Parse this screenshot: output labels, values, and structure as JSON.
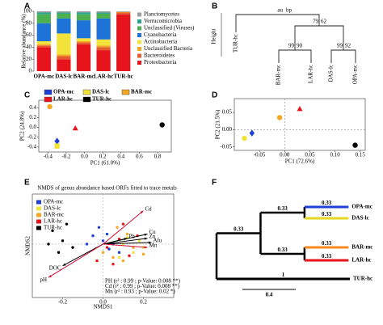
{
  "chart_data": [
    {
      "type": "stacked_bar",
      "label": "A",
      "ylabel": "Relative abundance (%)",
      "categories": [
        "OPA-mc",
        "DAS-lc",
        "BAR-mc",
        "LAR-hc",
        "TUR-hc"
      ],
      "series": [
        {
          "name": "Planctomycetes",
          "color": "#9e9e9e",
          "values": [
            2,
            2,
            2,
            2,
            1
          ]
        },
        {
          "name": "Verrucomicrobia",
          "color": "#2ca58d",
          "values": [
            3,
            2,
            3,
            2,
            0
          ]
        },
        {
          "name": "Unclassified (Viruses)",
          "color": "#4caf50",
          "values": [
            15,
            8,
            10,
            8,
            0
          ]
        },
        {
          "name": "Cyanobacteria",
          "color": "#1e73d8",
          "values": [
            30,
            25,
            30,
            35,
            0
          ]
        },
        {
          "name": "Actinobacteria",
          "color": "#f2e33a",
          "values": [
            5,
            35,
            5,
            10,
            0
          ]
        },
        {
          "name": "Unclassified Bacteria",
          "color": "#f5a623",
          "values": [
            2,
            3,
            2,
            3,
            1
          ]
        },
        {
          "name": "Bacteroidetes",
          "color": "#e35d2f",
          "values": [
            3,
            5,
            3,
            5,
            3
          ]
        },
        {
          "name": "Proteobacteria",
          "color": "#e8141b",
          "values": [
            40,
            20,
            45,
            35,
            95
          ]
        }
      ],
      "ylim": [
        0,
        100
      ],
      "yticks": [
        0,
        20,
        40,
        60,
        80,
        100
      ]
    },
    {
      "type": "pvclust",
      "label": "B",
      "ylabel": "Height",
      "edge_labels": [
        "au",
        "bp"
      ],
      "leaves": [
        "TUR-hc",
        "BAR-mc",
        "LAR-hc",
        "DAS-lc",
        "OPA-mc"
      ],
      "nodes": [
        {
          "au": 79,
          "bp": 62
        },
        {
          "au": 99,
          "bp": 90
        },
        {
          "au": 99,
          "bp": 92
        }
      ],
      "au_color": "#e8141b",
      "bp_color": "#2ca02c"
    },
    {
      "type": "scatter",
      "label": "C",
      "xlabel": "PC1 (61.0%)",
      "ylabel": "PC2 (24.8%)",
      "series": [
        {
          "name": "OPA-mc",
          "color": "#1e3fd8",
          "marker": "diamond",
          "x": [
            -0.3
          ],
          "y": [
            -0.28
          ]
        },
        {
          "name": "DAS-lc",
          "color": "#f2e33a",
          "marker": "square",
          "x": [
            -0.3
          ],
          "y": [
            -0.38
          ]
        },
        {
          "name": "BAR-mc",
          "color": "#f5a623",
          "marker": "circle",
          "x": [
            -0.38
          ],
          "y": [
            0.42
          ]
        },
        {
          "name": "LAR-hc",
          "color": "#e8141b",
          "marker": "triangle",
          "x": [
            -0.1
          ],
          "y": [
            -0.02
          ]
        },
        {
          "name": "TUR-hc",
          "color": "#000000",
          "marker": "circle",
          "x": [
            0.85
          ],
          "y": [
            0.05
          ]
        }
      ],
      "xlim": [
        -0.5,
        0.95
      ],
      "xticks": [
        -0.4,
        -0.2,
        {
          "value": 0,
          "label": "0.0"
        },
        0.2,
        0.4,
        0.6,
        0.8
      ],
      "ylim": [
        -0.5,
        0.55
      ],
      "yticks": [
        -0.4,
        -0.2,
        {
          "value": 0,
          "label": "0.0"
        },
        0.2,
        0.4
      ],
      "legend": "top",
      "zero_lines": false
    },
    {
      "type": "scatter",
      "label": "D",
      "xlabel": "PC1 (72.6%)",
      "ylabel": "PC2 (21.5%)",
      "series": [
        {
          "name": "OPA-mc",
          "color": "#1e3fd8",
          "marker": "diamond",
          "x": [
            -0.065
          ],
          "y": [
            -0.01
          ]
        },
        {
          "name": "DAS-lc",
          "color": "#f2e33a",
          "marker": "circle",
          "x": [
            -0.08
          ],
          "y": [
            -0.025
          ]
        },
        {
          "name": "BAR-mc",
          "color": "#f5a623",
          "marker": "circle",
          "x": [
            -0.01
          ],
          "y": [
            0.035
          ]
        },
        {
          "name": "LAR-hc",
          "color": "#e8141b",
          "marker": "triangle",
          "x": [
            0.03
          ],
          "y": [
            0.06
          ]
        },
        {
          "name": "TUR-hc",
          "color": "#000000",
          "marker": "circle",
          "x": [
            0.14
          ],
          "y": [
            -0.045
          ]
        }
      ],
      "xlim": [
        -0.1,
        0.16
      ],
      "xticks": [
        {
          "value": -0.05,
          "label": "-0.05"
        },
        {
          "value": 0,
          "label": "0.00"
        },
        {
          "value": 0.05,
          "label": "0.05"
        },
        {
          "value": 0.1,
          "label": "0.10"
        },
        {
          "value": 0.15,
          "label": "0.15"
        }
      ],
      "ylim": [
        -0.06,
        0.09
      ],
      "yticks": [
        {
          "value": -0.05,
          "label": "-0.05"
        },
        {
          "value": 0,
          "label": "0.00"
        },
        {
          "value": 0.05,
          "label": "0.05"
        }
      ],
      "zero_lines": true
    },
    {
      "type": "nmds",
      "label": "E",
      "title": "NMDS of genus abundance based ORFs fitted to trace metals",
      "xlabel": "NMDS1",
      "ylabel": "NMDS2",
      "series": [
        {
          "name": "OPA-mc",
          "color": "#1e3fd8",
          "x": [
            -0.05,
            0.0,
            0.03,
            -0.02,
            0.05,
            0.08,
            -0.08,
            0.02
          ],
          "y": [
            0.05,
            0.02,
            -0.03,
            0.1,
            0.0,
            -0.05,
            0.0,
            0.06
          ]
        },
        {
          "name": "DAS-lc",
          "color": "#f2e33a",
          "x": [
            0.1,
            0.15,
            0.12,
            0.18,
            0.08,
            0.2
          ],
          "y": [
            0.0,
            -0.05,
            0.04,
            0.02,
            -0.08,
            -0.02
          ]
        },
        {
          "name": "BAR-mc",
          "color": "#f5a623",
          "x": [
            0.05,
            0.1,
            0.15,
            0.0,
            0.12,
            0.2,
            0.07
          ],
          "y": [
            -0.08,
            -0.1,
            -0.02,
            -0.05,
            0.06,
            -0.06,
            0.1
          ]
        },
        {
          "name": "LAR-hc",
          "color": "#e8141b",
          "x": [
            0.02,
            0.08,
            0.13,
            0.17,
            -0.03,
            0.1,
            0.05
          ],
          "y": [
            -0.02,
            0.03,
            -0.07,
            0.05,
            -0.1,
            0.12,
            -0.12
          ]
        },
        {
          "name": "TUR-hc",
          "color": "#000000",
          "x": [
            -0.25,
            -0.2,
            -0.22,
            -0.18,
            -0.27,
            -0.15
          ],
          "y": [
            0.08,
            0.02,
            -0.05,
            0.12,
            0.0,
            -0.02
          ]
        }
      ],
      "vectors": [
        {
          "name": "Cd",
          "color": "#d0103a",
          "x": 0.2,
          "y": 0.2
        },
        {
          "name": "Pb",
          "color": "#000000",
          "x": 0.12,
          "y": 0.035
        },
        {
          "name": "Cu",
          "color": "#000000",
          "x": 0.22,
          "y": 0.06
        },
        {
          "name": "Zn",
          "color": "#000000",
          "x": 0.22,
          "y": 0.035
        },
        {
          "name": "Afu",
          "color": "#000000",
          "x": 0.24,
          "y": 0.01
        },
        {
          "name": "Mn",
          "color": "#d0103a",
          "x": 0.22,
          "y": -0.02
        },
        {
          "name": "DOC",
          "color": "#000000",
          "x": -0.2,
          "y": -0.13
        },
        {
          "name": "pH",
          "color": "#d0103a",
          "x": -0.27,
          "y": -0.2
        }
      ],
      "annotations": [
        "PH (r² : 0.99 ; p-Value: 0.008 **)",
        "Cd (r² : 0.99 ; p-Value: 0.008 **)",
        "Mn (r² : 0.93 ; p-Value: 0.02 *)"
      ],
      "annotation_color": "#d0103a",
      "xlim": [
        -0.35,
        0.35
      ],
      "xticks": [
        -0.2,
        {
          "value": 0,
          "label": "0.0"
        },
        0.2
      ],
      "ylim": [
        -0.32,
        0.3
      ],
      "zero_lines": true
    },
    {
      "type": "tree",
      "label": "F",
      "leaves": [
        {
          "name": "OPA-mc",
          "color": "#1e3fd8",
          "length": 0.33
        },
        {
          "name": "DAS-lc",
          "color": "#e6d820",
          "length": 0.33
        },
        {
          "name": "BAR-mc",
          "color": "#f58a1f",
          "length": 0.33
        },
        {
          "name": "LAR-hc",
          "color": "#e8141b",
          "length": 0.33
        },
        {
          "name": "TUR-hc",
          "color": "#000000",
          "length": 1
        }
      ],
      "inner": [
        {
          "name": "root-inner",
          "length": 0.33
        },
        {
          "name": "opa-das",
          "length": 0.33
        },
        {
          "name": "bar-lar",
          "length": 0.33
        }
      ],
      "scale_bar": 0.4
    }
  ]
}
